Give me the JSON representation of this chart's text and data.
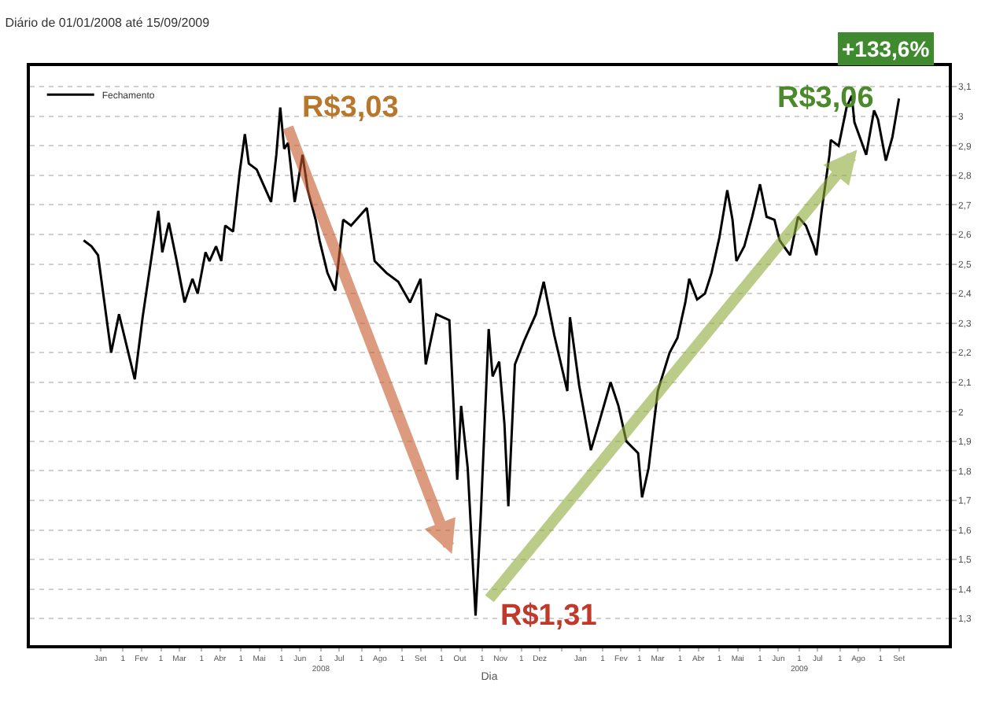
{
  "chart_data": {
    "type": "line",
    "title": "Diário de 01/01/2008 até 15/09/2009",
    "xlabel": "Dia",
    "x": [
      "2008-01-02",
      "2008-01-08",
      "2008-01-13",
      "2008-01-23",
      "2008-01-29",
      "2008-02-10",
      "2008-02-16",
      "2008-02-28",
      "2008-03-02",
      "2008-03-07",
      "2008-03-13",
      "2008-03-19",
      "2008-03-25",
      "2008-03-29",
      "2008-04-04",
      "2008-04-07",
      "2008-04-12",
      "2008-04-16",
      "2008-04-19",
      "2008-04-25",
      "2008-04-30",
      "2008-05-04",
      "2008-05-07",
      "2008-05-13",
      "2008-05-18",
      "2008-05-24",
      "2008-05-28",
      "2008-05-31",
      "2008-06-03",
      "2008-06-06",
      "2008-06-11",
      "2008-06-17",
      "2008-06-21",
      "2008-06-27",
      "2008-06-30",
      "2008-07-06",
      "2008-07-12",
      "2008-07-18",
      "2008-07-24",
      "2008-07-30",
      "2008-08-05",
      "2008-08-11",
      "2008-08-20",
      "2008-08-29",
      "2008-09-07",
      "2008-09-15",
      "2008-09-19",
      "2008-09-27",
      "2008-10-07",
      "2008-10-13",
      "2008-10-16",
      "2008-10-21",
      "2008-10-27",
      "2008-10-31",
      "2008-11-06",
      "2008-11-09",
      "2008-11-14",
      "2008-11-18",
      "2008-11-21",
      "2008-11-26",
      "2008-12-03",
      "2008-12-12",
      "2008-12-18",
      "2008-12-26",
      "2009-01-05",
      "2009-01-07",
      "2009-01-14",
      "2009-01-23",
      "2009-01-29",
      "2009-02-07",
      "2009-02-13",
      "2009-02-19",
      "2009-02-28",
      "2009-03-03",
      "2009-03-08",
      "2009-03-12",
      "2009-03-15",
      "2009-03-24",
      "2009-03-30",
      "2009-04-05",
      "2009-04-08",
      "2009-04-14",
      "2009-04-20",
      "2009-04-25",
      "2009-05-01",
      "2009-05-07",
      "2009-05-11",
      "2009-05-14",
      "2009-05-20",
      "2009-05-26",
      "2009-06-01",
      "2009-06-06",
      "2009-06-12",
      "2009-06-16",
      "2009-06-24",
      "2009-06-30",
      "2009-07-06",
      "2009-07-12",
      "2009-07-14",
      "2009-07-18",
      "2009-07-24",
      "2009-07-25",
      "2009-07-31",
      "2009-08-06",
      "2009-08-10",
      "2009-08-12",
      "2009-08-21",
      "2009-08-27",
      "2009-08-30",
      "2009-09-05",
      "2009-09-10",
      "2009-09-15"
    ],
    "series": [
      {
        "name": "Fechamento",
        "color": "#000000",
        "values": [
          2.58,
          2.56,
          2.53,
          2.2,
          2.33,
          2.11,
          2.32,
          2.68,
          2.54,
          2.64,
          2.51,
          2.37,
          2.45,
          2.4,
          2.54,
          2.51,
          2.56,
          2.51,
          2.63,
          2.61,
          2.81,
          2.94,
          2.84,
          2.82,
          2.77,
          2.71,
          2.87,
          3.03,
          2.89,
          2.91,
          2.71,
          2.87,
          2.75,
          2.65,
          2.58,
          2.47,
          2.41,
          2.65,
          2.63,
          2.66,
          2.69,
          2.51,
          2.47,
          2.44,
          2.37,
          2.45,
          2.16,
          2.33,
          2.31,
          1.77,
          2.02,
          1.81,
          1.31,
          1.65,
          2.28,
          2.12,
          2.17,
          1.96,
          1.68,
          2.16,
          2.24,
          2.33,
          2.44,
          2.26,
          2.07,
          2.32,
          2.09,
          1.87,
          1.96,
          2.1,
          2.02,
          1.9,
          1.86,
          1.71,
          1.81,
          1.96,
          2.07,
          2.2,
          2.25,
          2.37,
          2.45,
          2.38,
          2.4,
          2.47,
          2.59,
          2.75,
          2.65,
          2.51,
          2.56,
          2.66,
          2.77,
          2.66,
          2.65,
          2.58,
          2.53,
          2.66,
          2.63,
          2.56,
          2.53,
          2.68,
          2.87,
          2.92,
          2.9,
          3.03,
          3.07,
          2.98,
          2.87,
          3.02,
          2.99,
          2.85,
          2.93,
          3.06
        ]
      }
    ],
    "xlim": [
      "2007-11-22",
      "2009-10-23"
    ],
    "xticks": [
      {
        "value": "2008-01-15",
        "label": "Jan"
      },
      {
        "value": "2008-02-01",
        "label": "1"
      },
      {
        "value": "2008-02-15",
        "label": "Fev"
      },
      {
        "value": "2008-03-01",
        "label": "1"
      },
      {
        "value": "2008-03-15",
        "label": "Mar"
      },
      {
        "value": "2008-04-01",
        "label": "1"
      },
      {
        "value": "2008-04-15",
        "label": "Abr"
      },
      {
        "value": "2008-05-01",
        "label": "1"
      },
      {
        "value": "2008-05-15",
        "label": "Mai"
      },
      {
        "value": "2008-06-01",
        "label": "1"
      },
      {
        "value": "2008-06-15",
        "label": "Jun"
      },
      {
        "value": "2008-07-01",
        "label": "1\n2008"
      },
      {
        "value": "2008-07-15",
        "label": "Jul"
      },
      {
        "value": "2008-08-01",
        "label": "1"
      },
      {
        "value": "2008-08-15",
        "label": "Ago"
      },
      {
        "value": "2008-09-01",
        "label": "1"
      },
      {
        "value": "2008-09-15",
        "label": "Set"
      },
      {
        "value": "2008-10-01",
        "label": "1"
      },
      {
        "value": "2008-10-15",
        "label": "Out"
      },
      {
        "value": "2008-11-01",
        "label": "1"
      },
      {
        "value": "2008-11-15",
        "label": "Nov"
      },
      {
        "value": "2008-12-01",
        "label": "1"
      },
      {
        "value": "2008-12-15",
        "label": "Dez"
      },
      {
        "value": "2009-01-01",
        "label": null
      },
      {
        "value": "2009-01-15",
        "label": "Jan"
      },
      {
        "value": "2009-02-01",
        "label": "1"
      },
      {
        "value": "2009-02-15",
        "label": "Fev"
      },
      {
        "value": "2009-03-01",
        "label": "1"
      },
      {
        "value": "2009-03-15",
        "label": "Mar"
      },
      {
        "value": "2009-04-01",
        "label": "1"
      },
      {
        "value": "2009-04-15",
        "label": "Abr"
      },
      {
        "value": "2009-05-01",
        "label": "1"
      },
      {
        "value": "2009-05-15",
        "label": "Mai"
      },
      {
        "value": "2009-06-01",
        "label": "1"
      },
      {
        "value": "2009-06-15",
        "label": "Jun"
      },
      {
        "value": "2009-07-01",
        "label": "1\n2009"
      },
      {
        "value": "2009-07-15",
        "label": "Jul"
      },
      {
        "value": "2009-08-01",
        "label": "1"
      },
      {
        "value": "2009-08-15",
        "label": "Ago"
      },
      {
        "value": "2009-09-01",
        "label": "1"
      },
      {
        "value": "2009-09-15",
        "label": "Set"
      }
    ],
    "ylim": [
      1.21,
      3.17
    ],
    "yticks": [
      {
        "value": 1.3,
        "label": "1,3"
      },
      {
        "value": 1.4,
        "label": "1,4"
      },
      {
        "value": 1.5,
        "label": "1,5"
      },
      {
        "value": 1.6,
        "label": "1,6"
      },
      {
        "value": 1.7,
        "label": "1,7"
      },
      {
        "value": 1.8,
        "label": "1,8"
      },
      {
        "value": 1.9,
        "label": "1,9"
      },
      {
        "value": 2,
        "label": "2"
      },
      {
        "value": 2.1,
        "label": "2,1"
      },
      {
        "value": 2.2,
        "label": "2,2"
      },
      {
        "value": 2.3,
        "label": "2,3"
      },
      {
        "value": 2.4,
        "label": "2,4"
      },
      {
        "value": 2.5,
        "label": "2,5"
      },
      {
        "value": 2.6,
        "label": "2,6"
      },
      {
        "value": 2.7,
        "label": "2,7"
      },
      {
        "value": 2.8,
        "label": "2,8"
      },
      {
        "value": 2.9,
        "label": "2,9"
      },
      {
        "value": 3,
        "label": "3"
      },
      {
        "value": 3.1,
        "label": "3,1"
      }
    ],
    "annotations": [
      {
        "text": "R$3,03",
        "x": "2008-05-31",
        "y": 3.03
      },
      {
        "text": "R$1,31",
        "x": "2008-10-27",
        "y": 1.31
      },
      {
        "text": "R$3,06",
        "x": "2009-09-15",
        "y": 3.06
      },
      "+133,6%"
    ],
    "grid": "y",
    "legend": "top left",
    "marker": "none",
    "line_style": "solid"
  }
}
